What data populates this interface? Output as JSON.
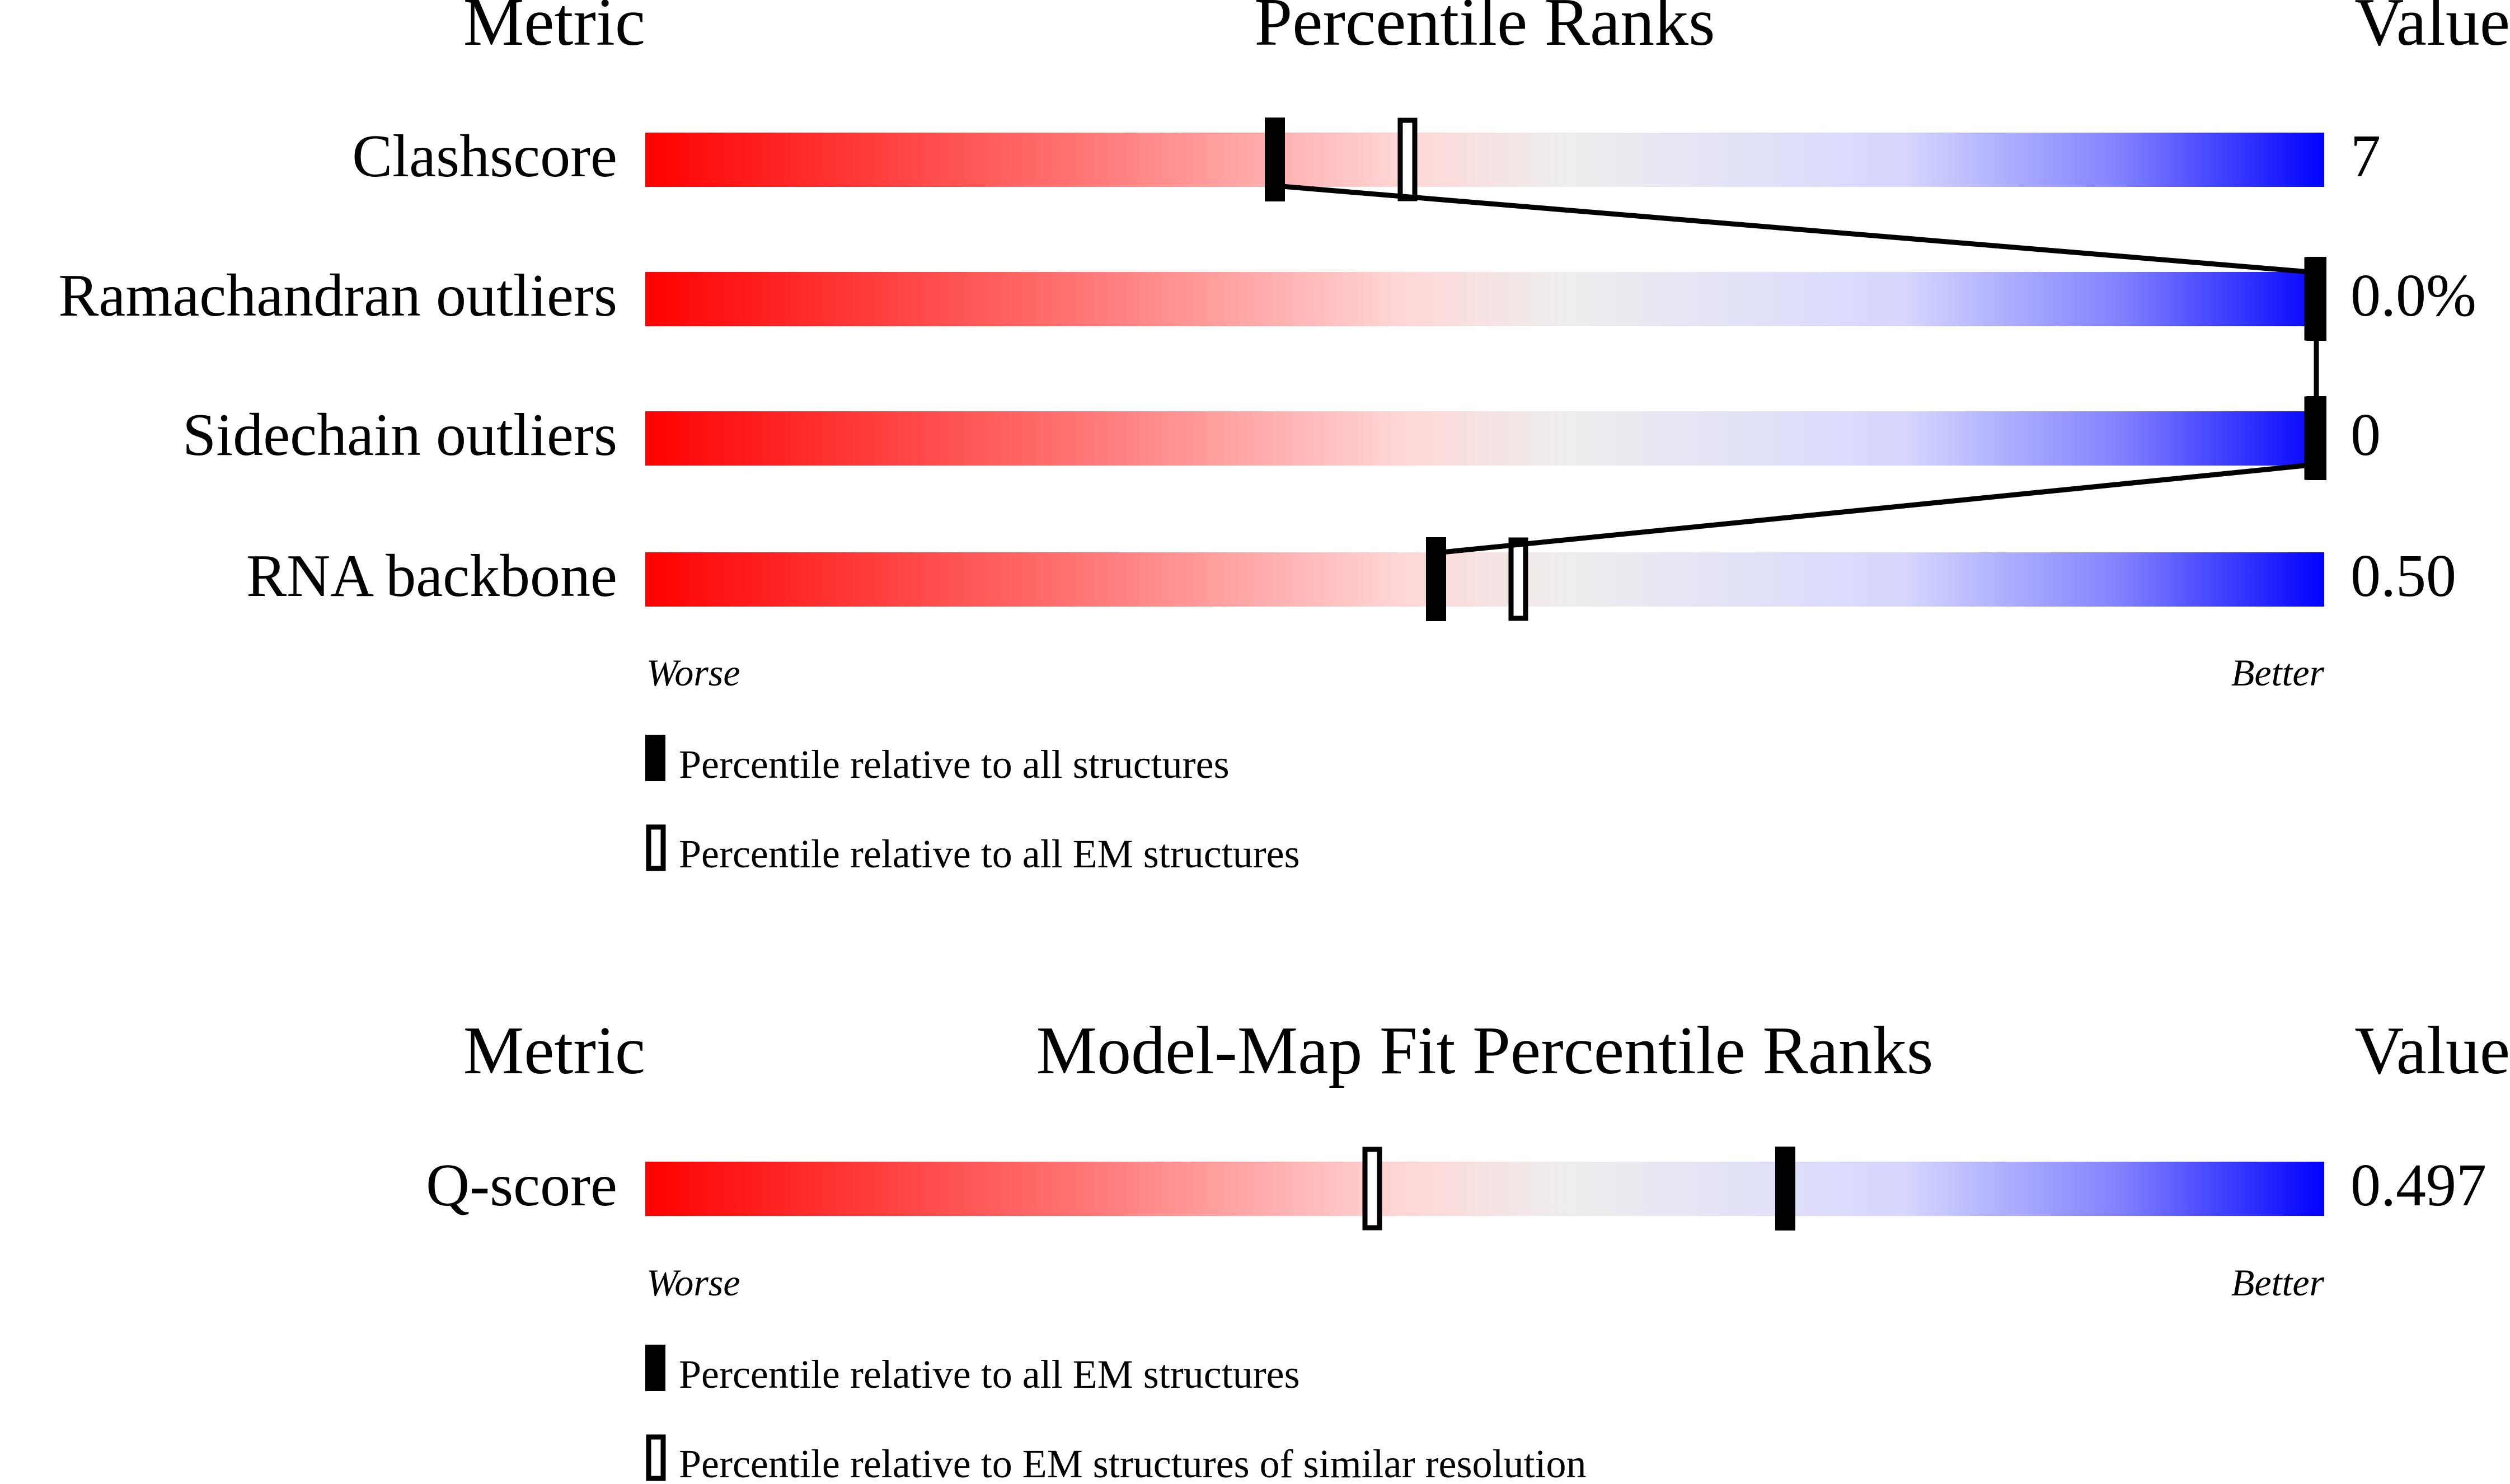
{
  "chart_data": [
    {
      "type": "percentile-slider",
      "header": {
        "metric": "Metric",
        "title": "Percentile Ranks",
        "value": "Value"
      },
      "axis": {
        "left": "Worse",
        "right": "Better",
        "range": [
          0,
          100
        ]
      },
      "rows": [
        {
          "label": "Clashscore",
          "value": "7",
          "percentile_all": 37.5,
          "percentile_secondary": 45.4
        },
        {
          "label": "Ramachandran outliers",
          "value": "0.0%",
          "percentile_all": 100,
          "percentile_secondary": 100
        },
        {
          "label": "Sidechain outliers",
          "value": "0",
          "percentile_all": 100,
          "percentile_secondary": 100
        },
        {
          "label": "RNA backbone",
          "value": "0.50",
          "percentile_all": 47.1,
          "percentile_secondary": 52.0
        }
      ],
      "legend": {
        "filled": "Percentile relative to all structures",
        "open": "Percentile relative to all EM structures"
      },
      "connect_filled_markers": true
    },
    {
      "type": "percentile-slider",
      "header": {
        "metric": "Metric",
        "title": "Model-Map Fit Percentile Ranks",
        "value": "Value"
      },
      "axis": {
        "left": "Worse",
        "right": "Better",
        "range": [
          0,
          100
        ]
      },
      "rows": [
        {
          "label": "Q-score",
          "value": "0.497",
          "percentile_all": 67.9,
          "percentile_secondary": 43.3
        }
      ],
      "legend": {
        "filled": "Percentile relative to all EM structures",
        "open": "Percentile relative to EM structures of similar resolution"
      },
      "connect_filled_markers": false
    }
  ],
  "colors": {
    "worse": "#ff0000",
    "middle": "#eeeeee",
    "better": "#0000ff",
    "marker": "#000000"
  }
}
